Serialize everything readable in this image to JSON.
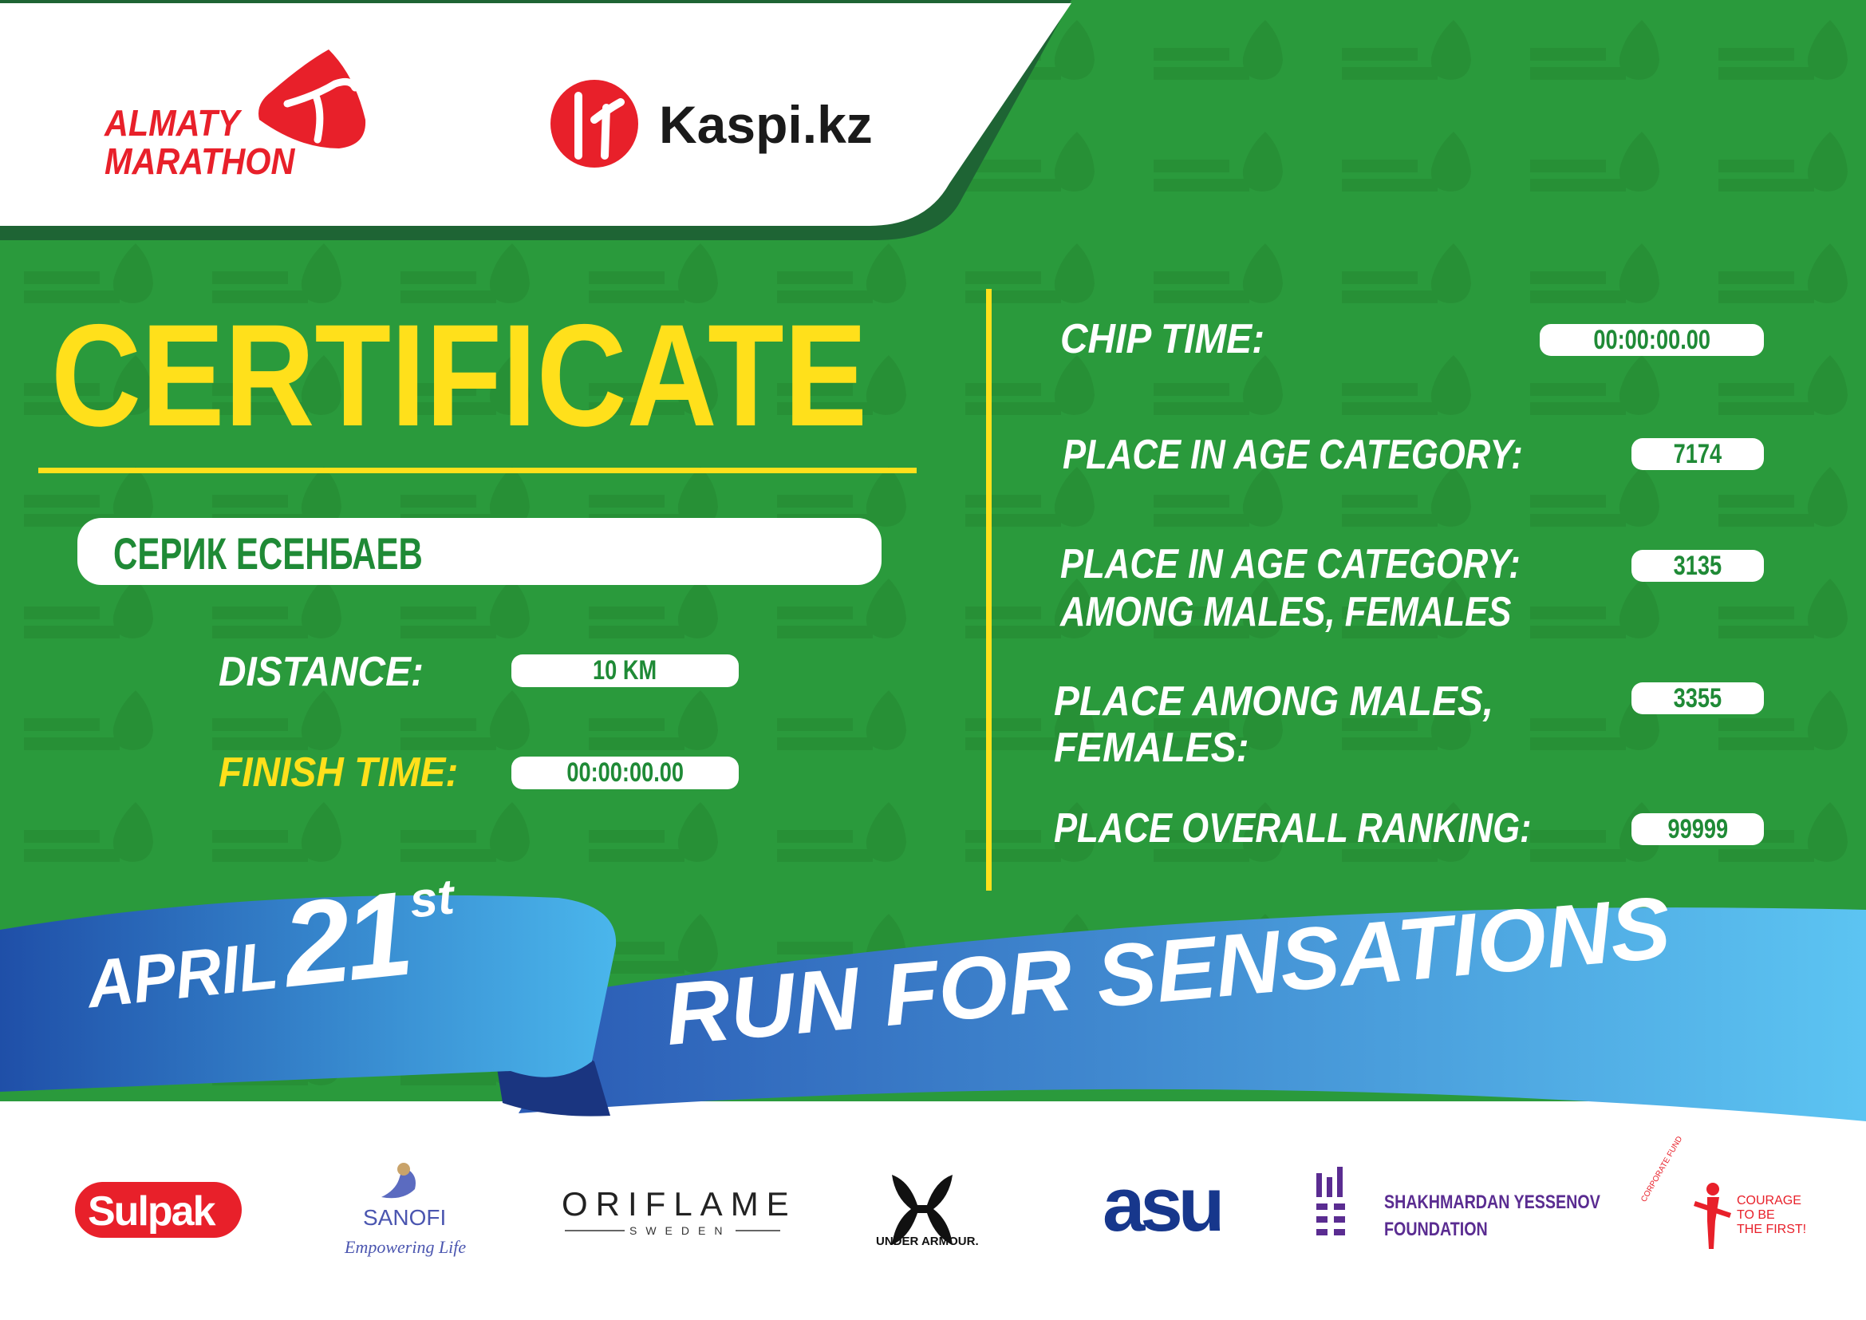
{
  "colors": {
    "green": "#2a9a3c",
    "dark_green": "#1e6434",
    "yellow": "#ffe01b",
    "red": "#e8202a",
    "blue": "#2d5fb8",
    "light_blue": "#5ac0f0"
  },
  "header": {
    "event_logo": {
      "line1": "ALMATY",
      "line2": "MARATHON"
    },
    "sponsor_logo": "Kaspi.kz"
  },
  "certificate": {
    "title": "CERTIFICATE",
    "participant_name": "СЕРИК ЕСЕНБАЕВ",
    "distance_label": "DISTANCE:",
    "distance_value": "10 KM",
    "finish_time_label": "FINISH TIME:",
    "finish_time_value": "00:00:00.00"
  },
  "results": {
    "chip_time_label": "CHIP TIME:",
    "chip_time_value": "00:00:00.00",
    "age_category_label": "PLACE IN AGE CATEGORY:",
    "age_category_value": "7174",
    "age_category_gender_label_1": "PLACE IN AGE CATEGORY:",
    "age_category_gender_label_2": "AMONG MALES, FEMALES",
    "age_category_gender_value": "3135",
    "gender_label_1": "PLACE AMONG MALES,",
    "gender_label_2": "FEMALES:",
    "gender_value": "3355",
    "overall_label": "PLACE OVERALL RANKING:",
    "overall_value": "99999"
  },
  "ribbon": {
    "month": "APRIL",
    "day": "21",
    "suffix": "st",
    "slogan": "RUN FOR SENSATIONS"
  },
  "watermark": "ALMATY MARATHON",
  "partners": {
    "sulpak": "Sulpak",
    "sanofi": "SANOFI",
    "sanofi_tagline": "Empowering Life",
    "oriflame": "ORIFLAME",
    "oriflame_sub": "SWEDEN",
    "under_armour": "UNDER ARMOUR.",
    "asu": "asu",
    "yessenov_1": "SHAKHMARDAN YESSENOV",
    "yessenov_2": "FOUNDATION",
    "courage_arc": "CORPORATE FUND",
    "courage_1": "COURAGE",
    "courage_2": "TO BE",
    "courage_3": "THE FIRST!"
  }
}
